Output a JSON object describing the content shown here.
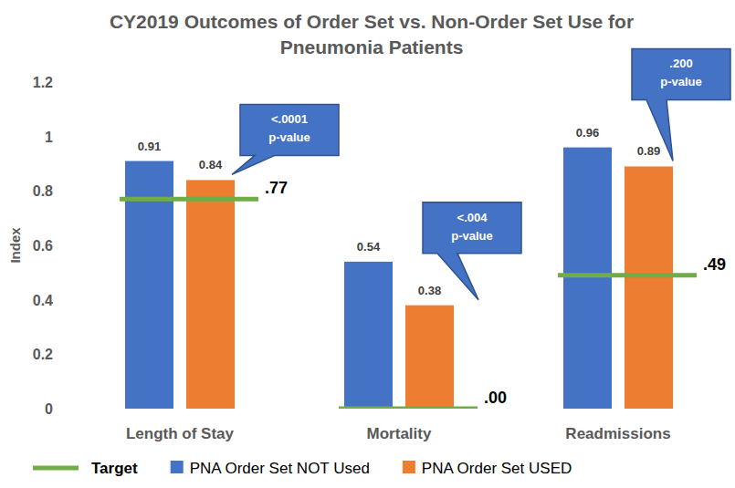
{
  "chart_data": {
    "type": "bar",
    "title": "CY2019 Outcomes of Order Set vs. Non-Order Set Use for Pneumonia Patients",
    "y_label": "Index",
    "categories": [
      "Length of Stay",
      "Mortality",
      "Readmissions"
    ],
    "series": [
      {
        "name": "Target",
        "type": "target",
        "color": "#70ad47",
        "values": [
          0.77,
          0.0,
          0.49
        ],
        "value_labels": [
          ".77",
          ".00",
          ".49"
        ]
      },
      {
        "name": "PNA Order Set NOT Used",
        "color": "#4472c4",
        "values": [
          0.91,
          0.54,
          0.96
        ]
      },
      {
        "name": "PNA Order Set USED",
        "color": "#ed7d31",
        "values": [
          0.84,
          0.38,
          0.89
        ]
      }
    ],
    "ylim": [
      0,
      1.2
    ],
    "yticks": [
      0,
      0.2,
      0.4,
      0.6,
      0.8,
      1,
      1.2
    ],
    "grid": false,
    "legend": "bottom",
    "data_labels": true,
    "annotations": [
      {
        "category": "Length of Stay",
        "lines": [
          "<.0001",
          "p-value"
        ]
      },
      {
        "category": "Mortality",
        "lines": [
          "<.004",
          "p-value"
        ]
      },
      {
        "category": "Readmissions",
        "lines": [
          ".200",
          "p-value"
        ]
      }
    ]
  }
}
